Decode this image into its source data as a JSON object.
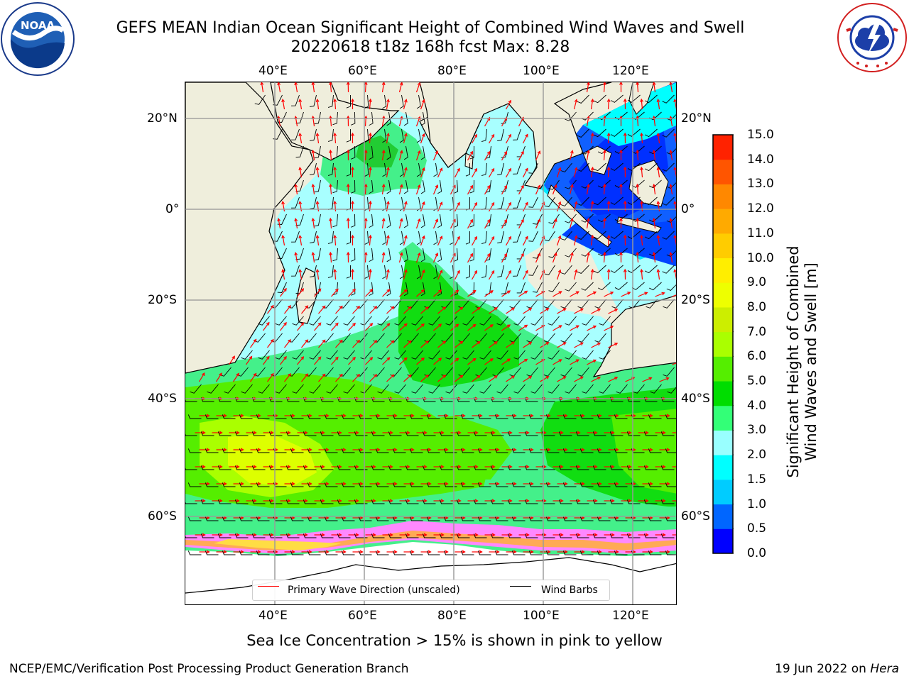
{
  "header": {
    "title_line1": "GEFS MEAN Indian Ocean Significant Height of Combined Wind Waves and Swell",
    "title_line2": "20220618 t18z 168h fcst   Max: 8.28"
  },
  "logos": {
    "left": "noaa-logo",
    "right": "nws-logo"
  },
  "map": {
    "lon_ticks": [
      "40°E",
      "60°E",
      "80°E",
      "100°E",
      "120°E"
    ],
    "lat_ticks": [
      "20°N",
      "0°",
      "20°S",
      "40°S",
      "60°S"
    ],
    "legend": {
      "wave_label": "Primary Wave Direction (unscaled)",
      "wind_label": "Wind Barbs",
      "wave_color": "#ff0000",
      "wind_color": "#000000"
    }
  },
  "colorbar": {
    "label_line1": "Significant Height of Combined",
    "label_line2": "Wind Waves and Swell [m]",
    "ticks": [
      "0.0",
      "0.5",
      "1.0",
      "1.5",
      "2.0",
      "3.0",
      "4.0",
      "5.0",
      "6.0",
      "7.0",
      "8.0",
      "9.0",
      "10.0",
      "11.0",
      "12.0",
      "13.0",
      "14.0",
      "15.0"
    ],
    "colors": [
      "#0000ff",
      "#0066ff",
      "#00ccff",
      "#00ffff",
      "#99ffff",
      "#33ff77",
      "#00dd00",
      "#55ee00",
      "#aaff00",
      "#ccee00",
      "#eeff00",
      "#ffee00",
      "#ffcc00",
      "#ffaa00",
      "#ff8800",
      "#ff5500",
      "#ff2200"
    ]
  },
  "footnote": "Sea Ice Concentration > 15% is shown in pink to yellow",
  "footer": {
    "credit": "NCEP/EMC/Verification Post Processing Product Generation Branch",
    "date_prefix": "19 Jun 2022 on ",
    "host": "Hera"
  }
}
